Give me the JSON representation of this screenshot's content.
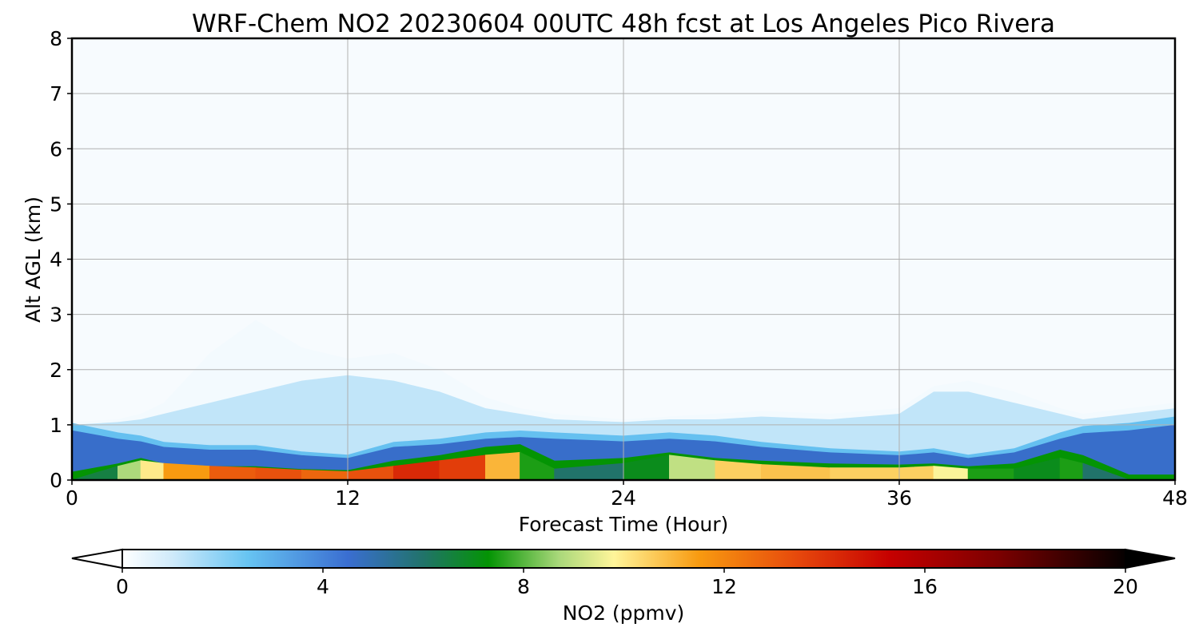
{
  "chart_data": {
    "type": "heatmap",
    "title": "WRF-Chem NO2  20230604 00UTC 48h fcst at Los Angeles Pico Rivera",
    "xlabel": "Forecast Time (Hour)",
    "ylabel": "Alt AGL (km)",
    "xlim": [
      0,
      48
    ],
    "ylim": [
      0,
      8
    ],
    "x_ticks": [
      0,
      12,
      24,
      36,
      48
    ],
    "y_ticks": [
      0,
      1,
      2,
      3,
      4,
      5,
      6,
      7,
      8
    ],
    "grid": true,
    "colorbar": {
      "label": "NO2  (ppmv)",
      "range": [
        0,
        20
      ],
      "ticks": [
        0,
        4,
        8,
        12,
        16,
        20
      ],
      "extend": "both",
      "placement": "bottom",
      "colors": [
        {
          "value": 0,
          "color": "#ffffff"
        },
        {
          "value": 1,
          "color": "#cfeafa"
        },
        {
          "value": 2.5,
          "color": "#67c4f2"
        },
        {
          "value": 4.5,
          "color": "#3a6ed1"
        },
        {
          "value": 6,
          "color": "#21736a"
        },
        {
          "value": 7.3,
          "color": "#049404"
        },
        {
          "value": 8.7,
          "color": "#a9d87a"
        },
        {
          "value": 9.8,
          "color": "#fff59a"
        },
        {
          "value": 11.5,
          "color": "#f89a10"
        },
        {
          "value": 13.5,
          "color": "#e6470c"
        },
        {
          "value": 15.3,
          "color": "#c60000"
        },
        {
          "value": 17.5,
          "color": "#7a0000"
        },
        {
          "value": 20,
          "color": "#050000"
        }
      ]
    },
    "x": [
      0,
      2,
      3,
      4,
      6,
      8,
      10,
      12,
      14,
      16,
      18,
      19.5,
      21,
      24,
      26,
      28,
      30,
      33,
      36,
      37.5,
      39,
      41,
      43,
      44,
      46,
      48
    ],
    "profiles": {
      "surface_no2": [
        5,
        8,
        9.5,
        10.5,
        12.5,
        13.5,
        13,
        12.5,
        14,
        14.5,
        13,
        9,
        6,
        6,
        8,
        10,
        11,
        10.5,
        10.5,
        10.5,
        9,
        6,
        8,
        7,
        5,
        5
      ],
      "core_top_km": [
        0,
        0.25,
        0.35,
        0.3,
        0.25,
        0.22,
        0.18,
        0.15,
        0.25,
        0.35,
        0.45,
        0.5,
        0.2,
        0.3,
        0.45,
        0.35,
        0.28,
        0.22,
        0.22,
        0.25,
        0.2,
        0.2,
        0.4,
        0.3,
        0,
        0
      ],
      "green_top_km": [
        0.15,
        0.3,
        0.4,
        0.3,
        0.25,
        0.25,
        0.2,
        0.18,
        0.35,
        0.45,
        0.6,
        0.65,
        0.35,
        0.4,
        0.5,
        0.4,
        0.35,
        0.3,
        0.28,
        0.3,
        0.25,
        0.3,
        0.55,
        0.45,
        0.1,
        0.1
      ],
      "blue_top_km": [
        0.9,
        0.75,
        0.7,
        0.6,
        0.55,
        0.55,
        0.45,
        0.4,
        0.6,
        0.65,
        0.75,
        0.78,
        0.75,
        0.7,
        0.75,
        0.7,
        0.6,
        0.5,
        0.45,
        0.5,
        0.4,
        0.5,
        0.75,
        0.85,
        0.9,
        1.0
      ],
      "haze_top_km": [
        1.0,
        1.05,
        1.1,
        1.2,
        1.4,
        1.6,
        1.8,
        1.9,
        1.8,
        1.6,
        1.3,
        1.2,
        1.1,
        1.05,
        1.1,
        1.1,
        1.15,
        1.1,
        1.2,
        1.6,
        1.6,
        1.4,
        1.2,
        1.1,
        1.2,
        1.3
      ],
      "faint_top_km": [
        1.05,
        1.1,
        1.2,
        1.4,
        2.3,
        2.9,
        2.4,
        2.2,
        2.3,
        2.0,
        1.5,
        1.3,
        1.2,
        1.1,
        1.15,
        1.2,
        1.25,
        1.2,
        1.3,
        1.7,
        1.8,
        1.6,
        1.3,
        1.2,
        1.3,
        1.4
      ]
    }
  }
}
